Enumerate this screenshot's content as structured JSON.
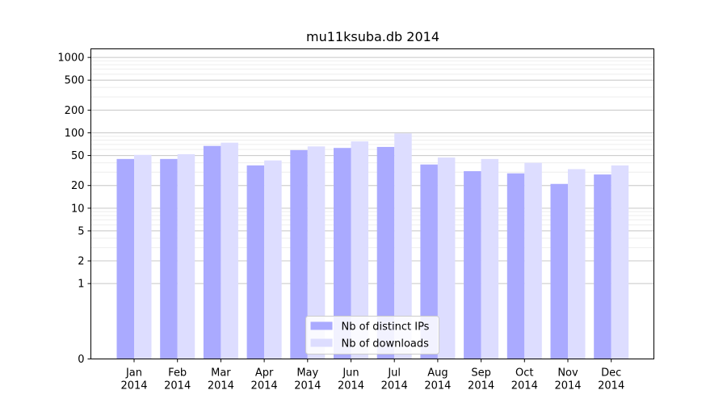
{
  "chart_data": {
    "type": "bar",
    "title": "mu11ksuba.db 2014",
    "y_scale": "symlog",
    "ylim": [
      0,
      1300
    ],
    "y_ticks": [
      0,
      1,
      2,
      5,
      10,
      20,
      50,
      100,
      200,
      500,
      1000
    ],
    "y_tick_labels": [
      "0",
      "1",
      "2",
      "5",
      "10",
      "20",
      "50",
      "100",
      "200",
      "500",
      "1000"
    ],
    "categories": [
      "Jan",
      "Feb",
      "Mar",
      "Apr",
      "May",
      "Jun",
      "Jul",
      "Aug",
      "Sep",
      "Oct",
      "Nov",
      "Dec"
    ],
    "category_year": "2014",
    "legend_position": "lower center",
    "grid": true,
    "series": [
      {
        "name": "Nb of distinct IPs",
        "color": "#aaaaff",
        "values": [
          45,
          45,
          67,
          37,
          59,
          63,
          65,
          38,
          31,
          29,
          21,
          28
        ]
      },
      {
        "name": "Nb of downloads",
        "color": "#ddddff",
        "values": [
          51,
          52,
          74,
          43,
          66,
          77,
          98,
          47,
          45,
          40,
          33,
          37
        ]
      }
    ]
  }
}
